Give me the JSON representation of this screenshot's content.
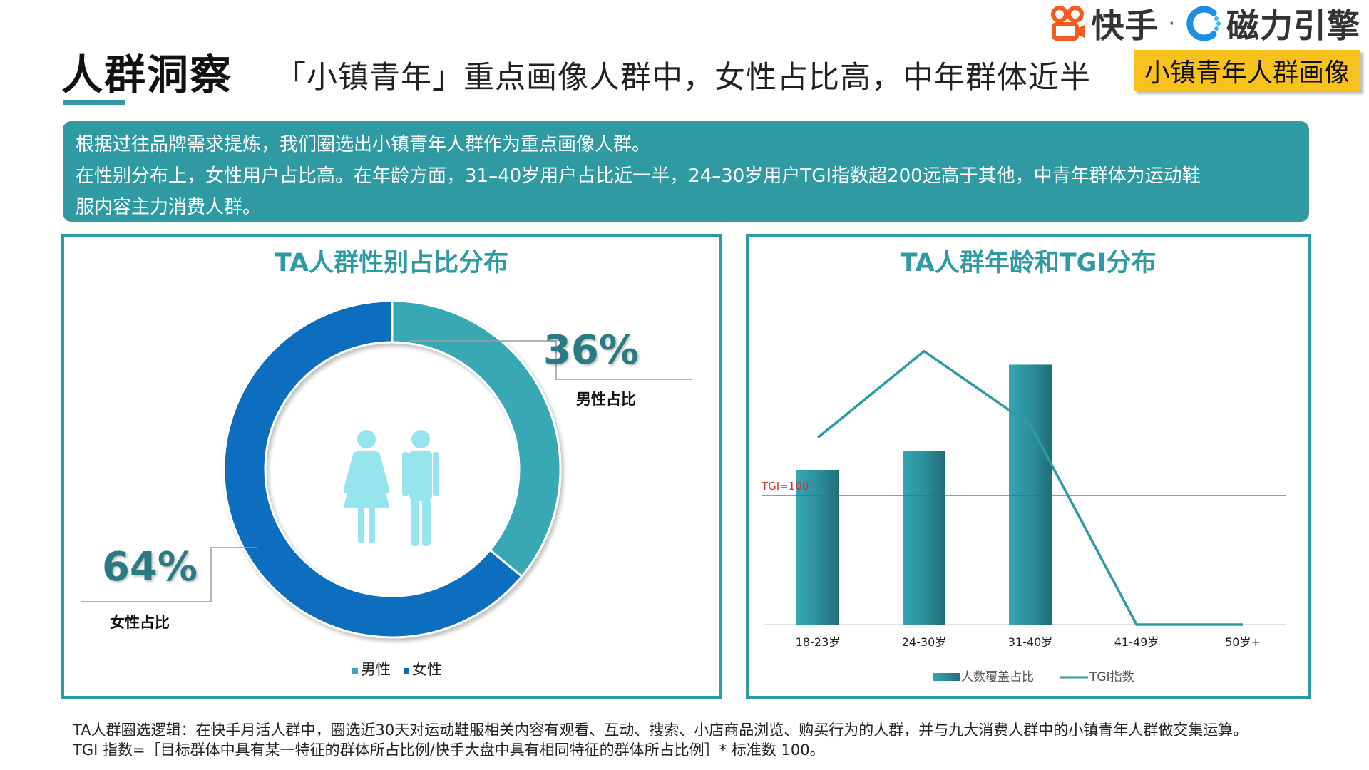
{
  "brand": {
    "kuaishou": "快手",
    "separator": "·",
    "cili": "磁力引擎"
  },
  "header": {
    "title": "人群洞察",
    "headline": "「小镇青年」重点画像人群中，女性占比高，中年群体近半",
    "tag": "小镇青年人群画像"
  },
  "summary": {
    "lines": [
      "根据过往品牌需求提炼，我们圈选出小镇青年人群作为重点画像人群。",
      "在性别分布上，女性用户占比高。在年龄方面，31–40岁用户占比近一半，24–30岁用户TGI指数超200远高于其他，中青年群体为运动鞋",
      "服内容主力消费人群。"
    ]
  },
  "colors": {
    "teal": "#2e9aa3",
    "male": "#38a8b5",
    "female": "#0a6ec0",
    "tgi_ref": "#d0312d",
    "tag": "#f7c21b"
  },
  "chart_data": [
    {
      "type": "pie",
      "title": "TA人群性别占比分布",
      "slices": [
        {
          "name": "男性",
          "value": 36,
          "label": "36%",
          "caption": "男性占比",
          "color": "#38a8b5"
        },
        {
          "name": "女性",
          "value": 64,
          "label": "64%",
          "caption": "女性占比",
          "color": "#0a6ec0"
        }
      ],
      "legend": [
        "男性",
        "女性"
      ],
      "legend_position": "bottom",
      "center_icon": "male-female-figures-icon"
    },
    {
      "type": "bar",
      "title": "TA人群年龄和TGI分布",
      "categories": [
        "18-23岁",
        "24-30岁",
        "31-40岁",
        "41-49岁",
        "50岁+"
      ],
      "series": [
        {
          "name": "人数覆盖占比",
          "type": "bar",
          "values": [
            25,
            28,
            42,
            0,
            0
          ]
        },
        {
          "name": "TGI指数",
          "type": "line",
          "values": [
            145,
            212,
            155,
            0,
            0
          ]
        }
      ],
      "reference_line": {
        "label": "TGI=100",
        "value": 100
      },
      "bar_ylim": [
        0,
        50
      ],
      "line_ylim": [
        0,
        240
      ],
      "grid": false,
      "legend_position": "bottom"
    }
  ],
  "footnote": {
    "lines": [
      "TA人群圈选逻辑：在快手月活人群中，圈选近30天对运动鞋服相关内容有观看、互动、搜索、小店商品浏览、购买行为的人群，并与九大消费人群中的小镇青年人群做交集运算。",
      "TGI 指数=［目标群体中具有某一特征的群体所占比例/快手大盘中具有相同特征的群体所占比例］* 标准数 100。"
    ]
  }
}
